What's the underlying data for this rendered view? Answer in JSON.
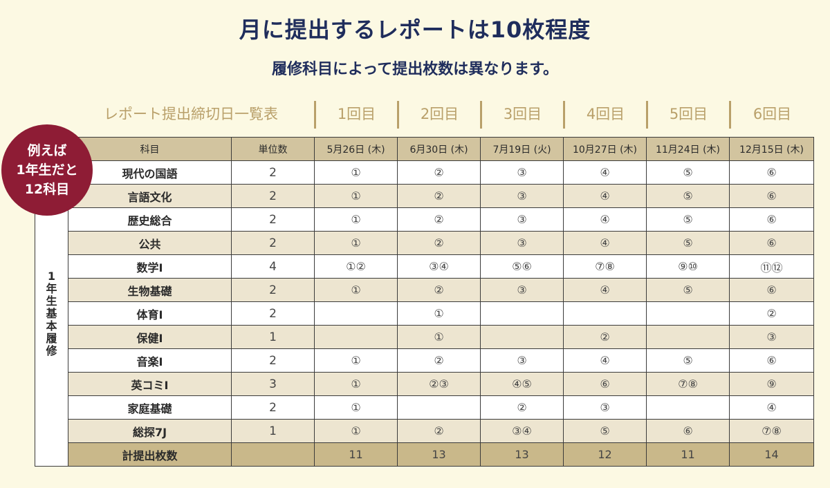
{
  "title": "月に提出するレポートは10枚程度",
  "subtitle": "履修科目によって提出枚数は異なります。",
  "table_caption": "レポート提出締切日一覧表",
  "rounds": [
    "1回目",
    "2回目",
    "3回目",
    "4回目",
    "5回目",
    "6回目"
  ],
  "badge": [
    "例えば",
    "1年生だと",
    "12科目"
  ],
  "side_label": [
    "1",
    "年",
    "生",
    "基",
    "本",
    "履",
    "修"
  ],
  "columns": {
    "subject": "科目",
    "units": "単位数",
    "dates": [
      "5月26日 (木)",
      "6月30日 (木)",
      "7月19日 (火)",
      "10月27日 (木)",
      "11月24日 (木)",
      "12月15日 (木)"
    ]
  },
  "rows": [
    {
      "subject": "現代の国語",
      "units": "2",
      "cells": [
        "①",
        "②",
        "③",
        "④",
        "⑤",
        "⑥"
      ]
    },
    {
      "subject": "言語文化",
      "units": "2",
      "cells": [
        "①",
        "②",
        "③",
        "④",
        "⑤",
        "⑥"
      ]
    },
    {
      "subject": "歴史総合",
      "units": "2",
      "cells": [
        "①",
        "②",
        "③",
        "④",
        "⑤",
        "⑥"
      ]
    },
    {
      "subject": "公共",
      "units": "2",
      "cells": [
        "①",
        "②",
        "③",
        "④",
        "⑤",
        "⑥"
      ]
    },
    {
      "subject": "数学Ⅰ",
      "units": "4",
      "cells": [
        "①②",
        "③④",
        "⑤⑥",
        "⑦⑧",
        "⑨⑩",
        "⑪⑫"
      ]
    },
    {
      "subject": "生物基礎",
      "units": "2",
      "cells": [
        "①",
        "②",
        "③",
        "④",
        "⑤",
        "⑥"
      ]
    },
    {
      "subject": "体育Ⅰ",
      "units": "2",
      "cells": [
        "",
        "①",
        "",
        "",
        "",
        "②"
      ]
    },
    {
      "subject": "保健Ⅰ",
      "units": "1",
      "cells": [
        "",
        "①",
        "",
        "②",
        "",
        "③"
      ]
    },
    {
      "subject": "音楽Ⅰ",
      "units": "2",
      "cells": [
        "①",
        "②",
        "③",
        "④",
        "⑤",
        "⑥"
      ]
    },
    {
      "subject": "英コミⅠ",
      "units": "3",
      "cells": [
        "①",
        "②③",
        "④⑤",
        "⑥",
        "⑦⑧",
        "⑨"
      ]
    },
    {
      "subject": "家庭基礎",
      "units": "2",
      "cells": [
        "①",
        "",
        "②",
        "③",
        "",
        "④"
      ]
    },
    {
      "subject": "総探7J",
      "units": "1",
      "cells": [
        "①",
        "②",
        "③④",
        "⑤",
        "⑥",
        "⑦⑧"
      ]
    }
  ],
  "total": {
    "label": "計提出枚数",
    "units": "",
    "cells": [
      "11",
      "13",
      "13",
      "12",
      "11",
      "14"
    ]
  }
}
